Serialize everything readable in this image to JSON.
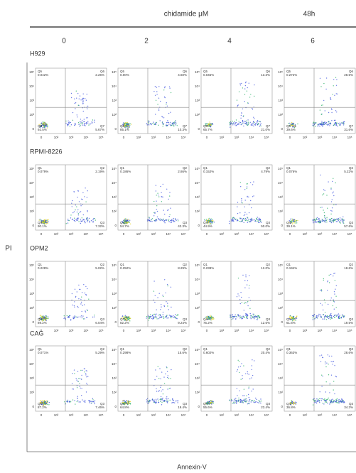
{
  "header": {
    "treatment": "chidamide μM",
    "time": "48h",
    "columns": [
      "0",
      "2",
      "4",
      "6"
    ]
  },
  "y_label": "PI",
  "x_label": "Annexin-V",
  "axis_ticks": {
    "x": [
      "0",
      "10²",
      "10³",
      "10⁴",
      "10⁵"
    ],
    "y": [
      "10⁵",
      "10⁴",
      "10³",
      "10²",
      "0"
    ]
  },
  "rows": [
    {
      "label": "H929",
      "panels": [
        {
          "quadrants": [
            {
              "name": "Q5",
              "value": "0.042%"
            },
            {
              "name": "Q6",
              "value": "2.26%"
            },
            {
              "name": "Q8",
              "value": "92.5%"
            },
            {
              "name": "Q7",
              "value": "5.67%"
            }
          ]
        },
        {
          "quadrants": [
            {
              "name": "Q5",
              "value": "0.00%"
            },
            {
              "name": "Q6",
              "value": "4.60%"
            },
            {
              "name": "Q8",
              "value": "85.1%"
            },
            {
              "name": "Q7",
              "value": "10.3%"
            }
          ]
        },
        {
          "quadrants": [
            {
              "name": "Q5",
              "value": "0.045%"
            },
            {
              "name": "Q6",
              "value": "13.3%"
            },
            {
              "name": "Q8",
              "value": "65.7%"
            },
            {
              "name": "Q7",
              "value": "21.0%"
            }
          ]
        },
        {
          "quadrants": [
            {
              "name": "Q5",
              "value": "0.272%"
            },
            {
              "name": "Q6",
              "value": "28.5%"
            },
            {
              "name": "Q8",
              "value": "39.6%"
            },
            {
              "name": "Q7",
              "value": "31.6%"
            }
          ]
        }
      ]
    },
    {
      "label": "RPMI-8226",
      "panels": [
        {
          "quadrants": [
            {
              "name": "Q1",
              "value": "0.079%"
            },
            {
              "name": "Q2",
              "value": "2.19%"
            },
            {
              "name": "Q4",
              "value": "90.1%"
            },
            {
              "name": "Q3",
              "value": "7.32%"
            }
          ]
        },
        {
          "quadrants": [
            {
              "name": "Q1",
              "value": "0.186%"
            },
            {
              "name": "Q2",
              "value": "2.86%"
            },
            {
              "name": "Q4",
              "value": "54.7%"
            },
            {
              "name": "Q3",
              "value": "42.3%"
            }
          ]
        },
        {
          "quadrants": [
            {
              "name": "Q1",
              "value": "0.152%"
            },
            {
              "name": "Q2",
              "value": "4.79%"
            },
            {
              "name": "Q4",
              "value": "44.9%"
            },
            {
              "name": "Q3",
              "value": "50.0%"
            }
          ]
        },
        {
          "quadrants": [
            {
              "name": "Q1",
              "value": "0.076%"
            },
            {
              "name": "Q2",
              "value": "5.22%"
            },
            {
              "name": "Q4",
              "value": "39.1%"
            },
            {
              "name": "Q3",
              "value": "57.6%"
            }
          ]
        }
      ]
    },
    {
      "label": "OPM2",
      "panels": [
        {
          "quadrants": [
            {
              "name": "Q1",
              "value": "0.228%"
            },
            {
              "name": "Q2",
              "value": "5.02%"
            },
            {
              "name": "Q4",
              "value": "89.2%"
            },
            {
              "name": "Q3",
              "value": "6.04%"
            }
          ]
        },
        {
          "quadrants": [
            {
              "name": "Q1",
              "value": "0.252%"
            },
            {
              "name": "Q2",
              "value": "8.29%"
            },
            {
              "name": "Q4",
              "value": "82.2%"
            },
            {
              "name": "Q3",
              "value": "9.24%"
            }
          ]
        },
        {
          "quadrants": [
            {
              "name": "Q1",
              "value": "0.238%"
            },
            {
              "name": "Q2",
              "value": "12.0%"
            },
            {
              "name": "Q4",
              "value": "75.2%"
            },
            {
              "name": "Q3",
              "value": "12.6%"
            }
          ]
        },
        {
          "quadrants": [
            {
              "name": "Q1",
              "value": "0.194%"
            },
            {
              "name": "Q2",
              "value": "18.6%"
            },
            {
              "name": "Q4",
              "value": "61.6%"
            },
            {
              "name": "Q3",
              "value": "19.5%"
            }
          ]
        }
      ]
    },
    {
      "label": "CAG",
      "panels": [
        {
          "quadrants": [
            {
              "name": "Q1",
              "value": "0.071%"
            },
            {
              "name": "Q2",
              "value": "5.29%"
            },
            {
              "name": "Q4",
              "value": "87.2%"
            },
            {
              "name": "Q3",
              "value": "7.46%"
            }
          ]
        },
        {
          "quadrants": [
            {
              "name": "Q1",
              "value": "0.298%"
            },
            {
              "name": "Q2",
              "value": "15.6%"
            },
            {
              "name": "Q4",
              "value": "64.8%"
            },
            {
              "name": "Q3",
              "value": "19.4%"
            }
          ]
        },
        {
          "quadrants": [
            {
              "name": "Q1",
              "value": "0.602%"
            },
            {
              "name": "Q2",
              "value": "20.4%"
            },
            {
              "name": "Q4",
              "value": "55.6%"
            },
            {
              "name": "Q3",
              "value": "23.4%"
            }
          ]
        },
        {
          "quadrants": [
            {
              "name": "Q1",
              "value": "0.363%"
            },
            {
              "name": "Q2",
              "value": "28.6%"
            },
            {
              "name": "Q4",
              "value": "36.8%"
            },
            {
              "name": "Q3",
              "value": "34.3%"
            }
          ]
        }
      ]
    }
  ]
}
